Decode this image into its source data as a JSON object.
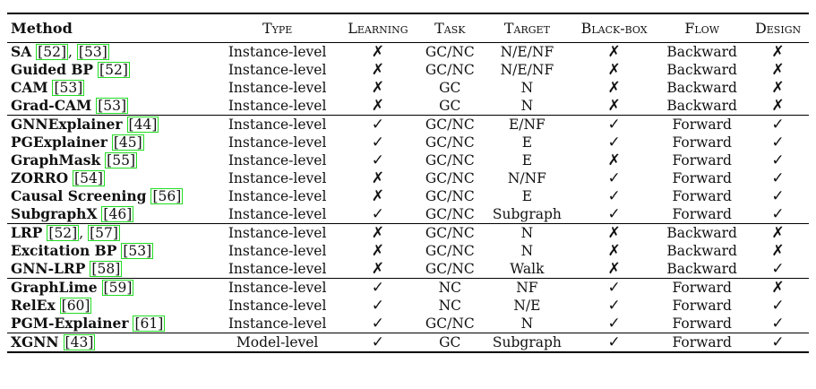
{
  "headers": [
    "Method",
    "Type",
    "Learning",
    "Task",
    "Target",
    "Black-box",
    "Flow",
    "Design"
  ],
  "groups": [
    [
      {
        "name": "SA",
        "citations": [
          "52",
          "53"
        ],
        "type": "Instance-level",
        "learning": "✗",
        "task": "GC/NC",
        "target": "N/E/NF",
        "blackbox": "✗",
        "flow": "Backward",
        "design": "✗"
      },
      {
        "name": "Guided BP",
        "citations": [
          "52"
        ],
        "type": "Instance-level",
        "learning": "✗",
        "task": "GC/NC",
        "target": "N/E/NF",
        "blackbox": "✗",
        "flow": "Backward",
        "design": "✗"
      },
      {
        "name": "CAM",
        "citations": [
          "53"
        ],
        "type": "Instance-level",
        "learning": "✗",
        "task": "GC",
        "target": "N",
        "blackbox": "✗",
        "flow": "Backward",
        "design": "✗"
      },
      {
        "name": "Grad-CAM",
        "citations": [
          "53"
        ],
        "type": "Instance-level",
        "learning": "✗",
        "task": "GC",
        "target": "N",
        "blackbox": "✗",
        "flow": "Backward",
        "design": "✗"
      }
    ],
    [
      {
        "name": "GNNExplainer",
        "citations": [
          "44"
        ],
        "type": "Instance-level",
        "learning": "✓",
        "task": "GC/NC",
        "target": "E/NF",
        "blackbox": "✓",
        "flow": "Forward",
        "design": "✓"
      },
      {
        "name": "PGExplainer",
        "citations": [
          "45"
        ],
        "type": "Instance-level",
        "learning": "✓",
        "task": "GC/NC",
        "target": "E",
        "blackbox": "✓",
        "flow": "Forward",
        "design": "✓"
      },
      {
        "name": "GraphMask",
        "citations": [
          "55"
        ],
        "type": "Instance-level",
        "learning": "✓",
        "task": "GC/NC",
        "target": "E",
        "blackbox": "✗",
        "flow": "Forward",
        "design": "✓"
      },
      {
        "name": "ZORRO",
        "citations": [
          "54"
        ],
        "type": "Instance-level",
        "learning": "✗",
        "task": "GC/NC",
        "target": "N/NF",
        "blackbox": "✓",
        "flow": "Forward",
        "design": "✓"
      },
      {
        "name": "Causal Screening",
        "citations": [
          "56"
        ],
        "type": "Instance-level",
        "learning": "✗",
        "task": "GC/NC",
        "target": "E",
        "blackbox": "✓",
        "flow": "Forward",
        "design": "✓"
      },
      {
        "name": "SubgraphX",
        "citations": [
          "46"
        ],
        "type": "Instance-level",
        "learning": "✓",
        "task": "GC/NC",
        "target": "Subgraph",
        "blackbox": "✓",
        "flow": "Forward",
        "design": "✓"
      }
    ],
    [
      {
        "name": "LRP",
        "citations": [
          "52",
          "57"
        ],
        "type": "Instance-level",
        "learning": "✗",
        "task": "GC/NC",
        "target": "N",
        "blackbox": "✗",
        "flow": "Backward",
        "design": "✗"
      },
      {
        "name": "Excitation BP",
        "citations": [
          "53"
        ],
        "type": "Instance-level",
        "learning": "✗",
        "task": "GC/NC",
        "target": "N",
        "blackbox": "✗",
        "flow": "Backward",
        "design": "✗"
      },
      {
        "name": "GNN-LRP",
        "citations": [
          "58"
        ],
        "type": "Instance-level",
        "learning": "✗",
        "task": "GC/NC",
        "target": "Walk",
        "blackbox": "✗",
        "flow": "Backward",
        "design": "✓"
      }
    ],
    [
      {
        "name": "GraphLime",
        "citations": [
          "59"
        ],
        "type": "Instance-level",
        "learning": "✓",
        "task": "NC",
        "target": "NF",
        "blackbox": "✓",
        "flow": "Forward",
        "design": "✗"
      },
      {
        "name": "RelEx",
        "citations": [
          "60"
        ],
        "type": "Instance-level",
        "learning": "✓",
        "task": "NC",
        "target": "N/E",
        "blackbox": "✓",
        "flow": "Forward",
        "design": "✓"
      },
      {
        "name": "PGM-Explainer",
        "citations": [
          "61"
        ],
        "type": "Instance-level",
        "learning": "✓",
        "task": "GC/NC",
        "target": "N",
        "blackbox": "✓",
        "flow": "Forward",
        "design": "✓"
      }
    ],
    [
      {
        "name": "XGNN",
        "citations": [
          "43"
        ],
        "type": "Model-level",
        "learning": "✓",
        "task": "GC",
        "target": "Subgraph",
        "blackbox": "✓",
        "flow": "Forward",
        "design": "✓"
      }
    ]
  ]
}
